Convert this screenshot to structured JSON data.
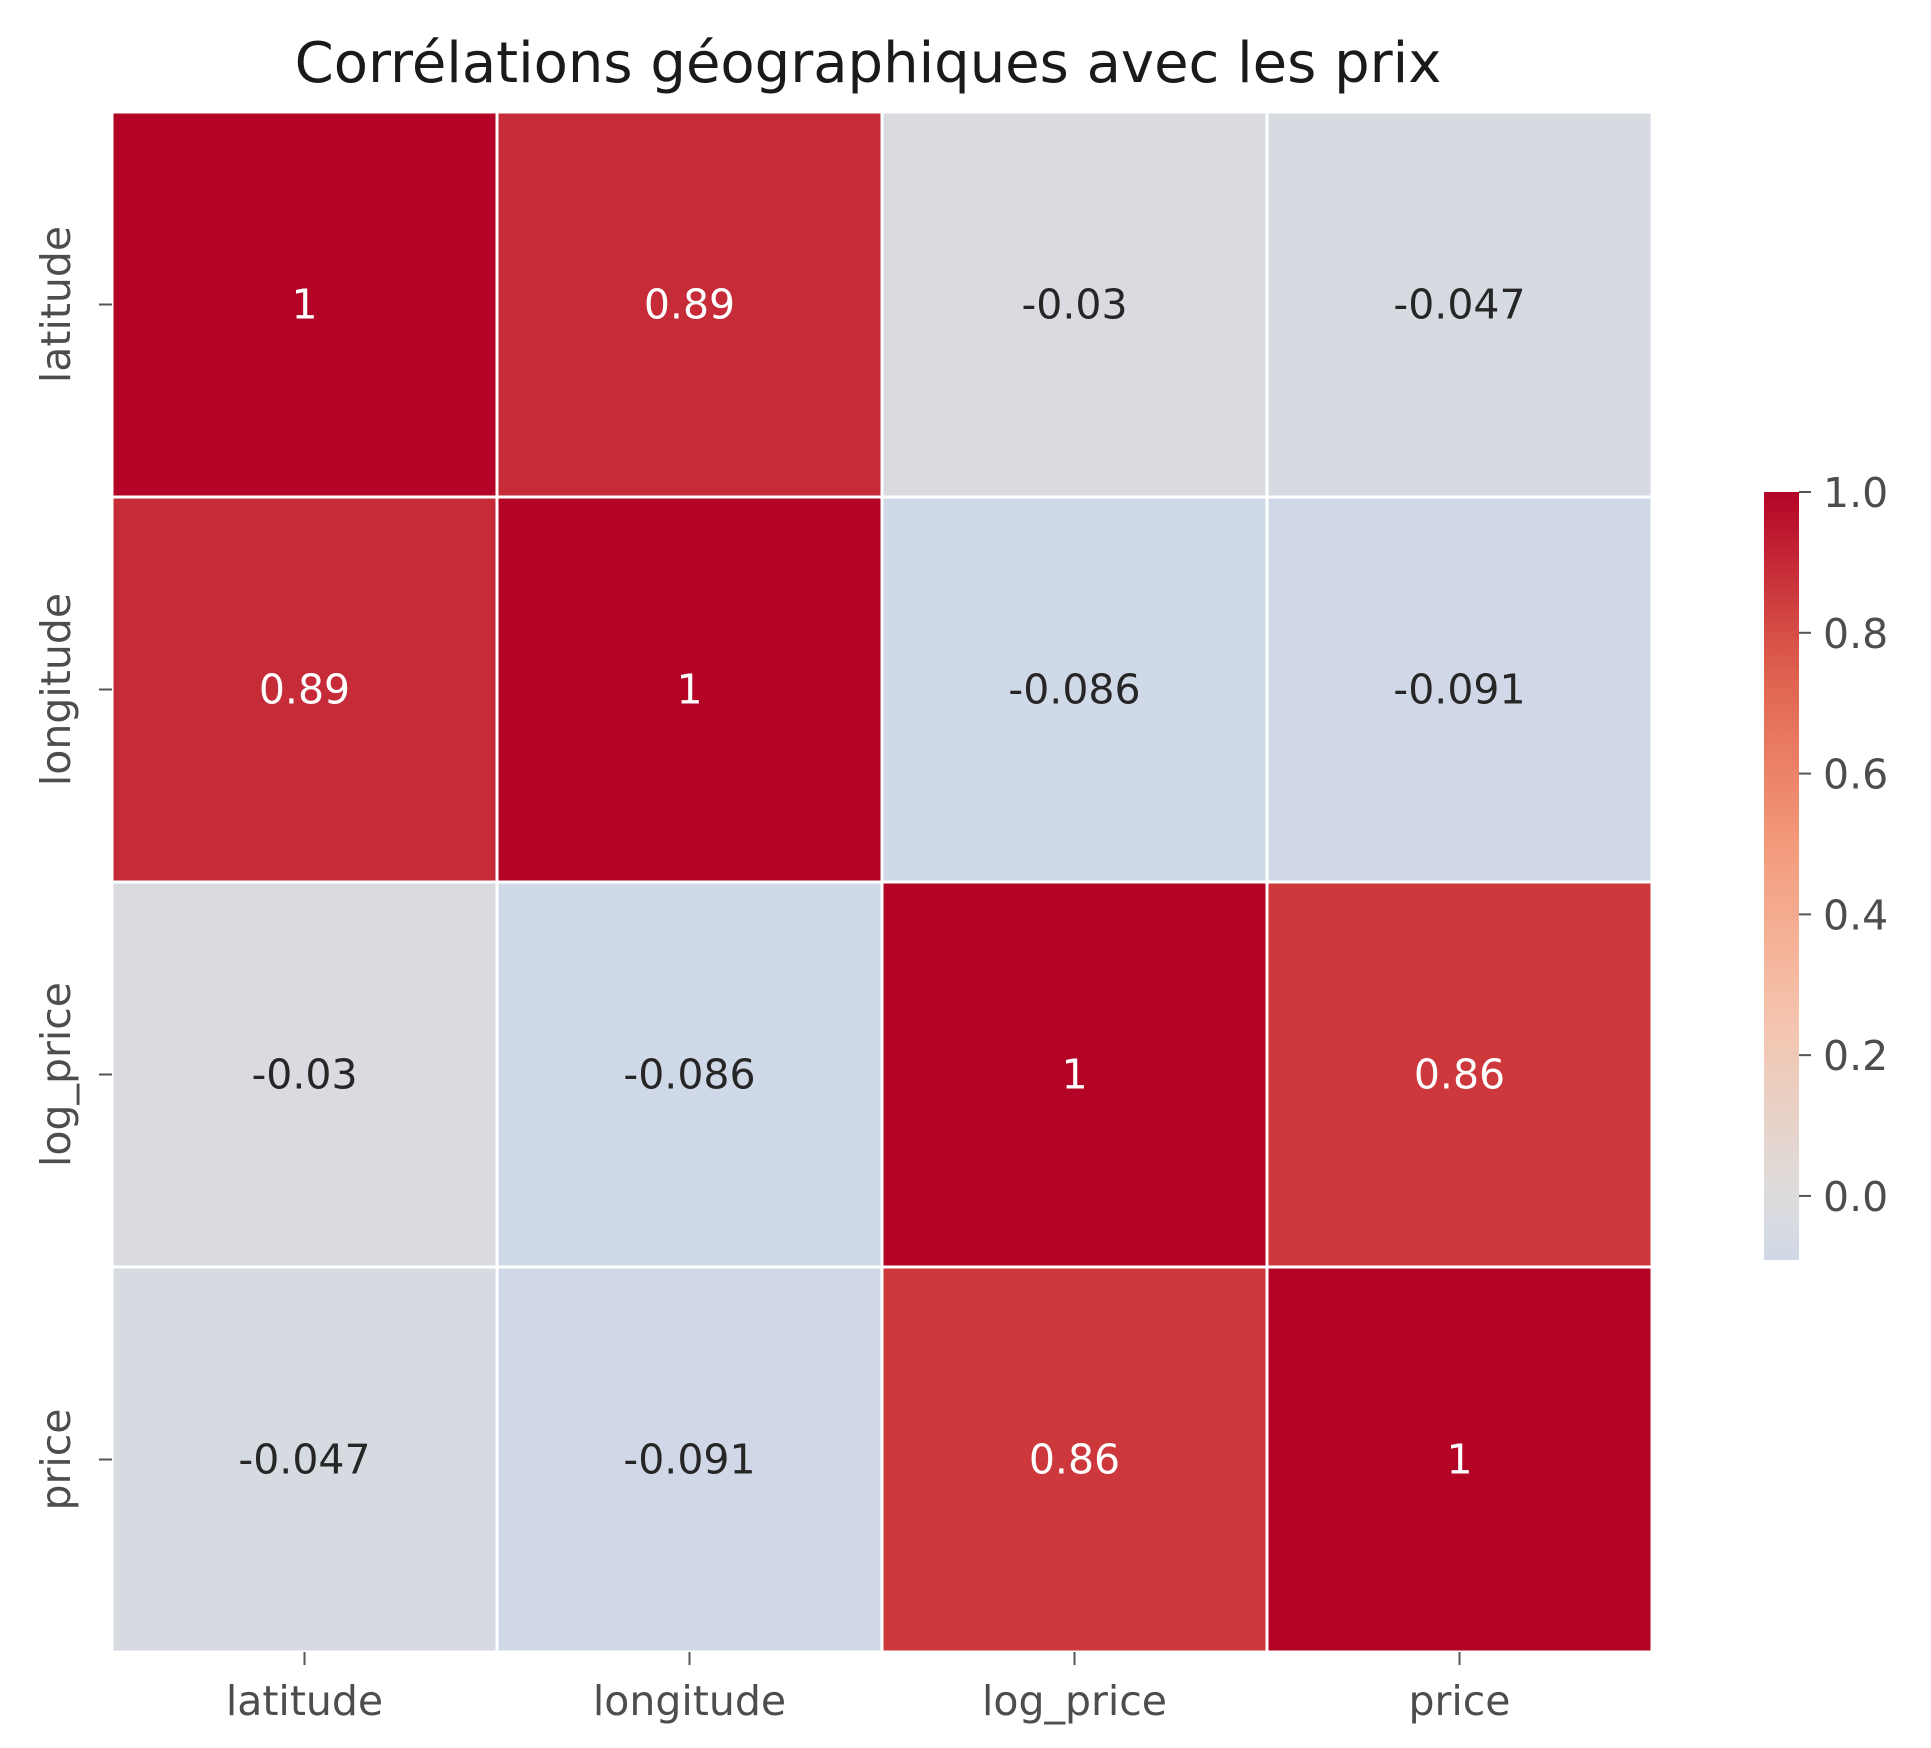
{
  "chart_data": {
    "type": "heatmap",
    "title": "Corrélations géographiques avec les prix",
    "x_categories": [
      "latitude",
      "longitude",
      "log_price",
      "price"
    ],
    "y_categories": [
      "latitude",
      "longitude",
      "log_price",
      "price"
    ],
    "values": [
      [
        1,
        0.89,
        -0.03,
        -0.047
      ],
      [
        0.89,
        1,
        -0.086,
        -0.091
      ],
      [
        -0.03,
        -0.086,
        1,
        0.86
      ],
      [
        -0.047,
        -0.091,
        0.86,
        1
      ]
    ],
    "annotations": [
      [
        "1",
        "0.89",
        "-0.03",
        "-0.047"
      ],
      [
        "0.89",
        "1",
        "-0.086",
        "-0.091"
      ],
      [
        "-0.03",
        "-0.086",
        "1",
        "0.86"
      ],
      [
        "-0.047",
        "-0.091",
        "0.86",
        "1"
      ]
    ],
    "colormap": "coolwarm",
    "colormap_center": 0,
    "colorbar": {
      "range": [
        -0.091,
        1.0
      ],
      "ticks": [
        0.0,
        0.2,
        0.4,
        0.6,
        0.8,
        1.0
      ],
      "tick_labels": [
        "0.0",
        "0.2",
        "0.4",
        "0.6",
        "0.8",
        "1.0"
      ]
    },
    "colors": {
      "cell_border": "#ffffff",
      "text_light": "#ffffff",
      "text_dark": "#262626"
    }
  }
}
